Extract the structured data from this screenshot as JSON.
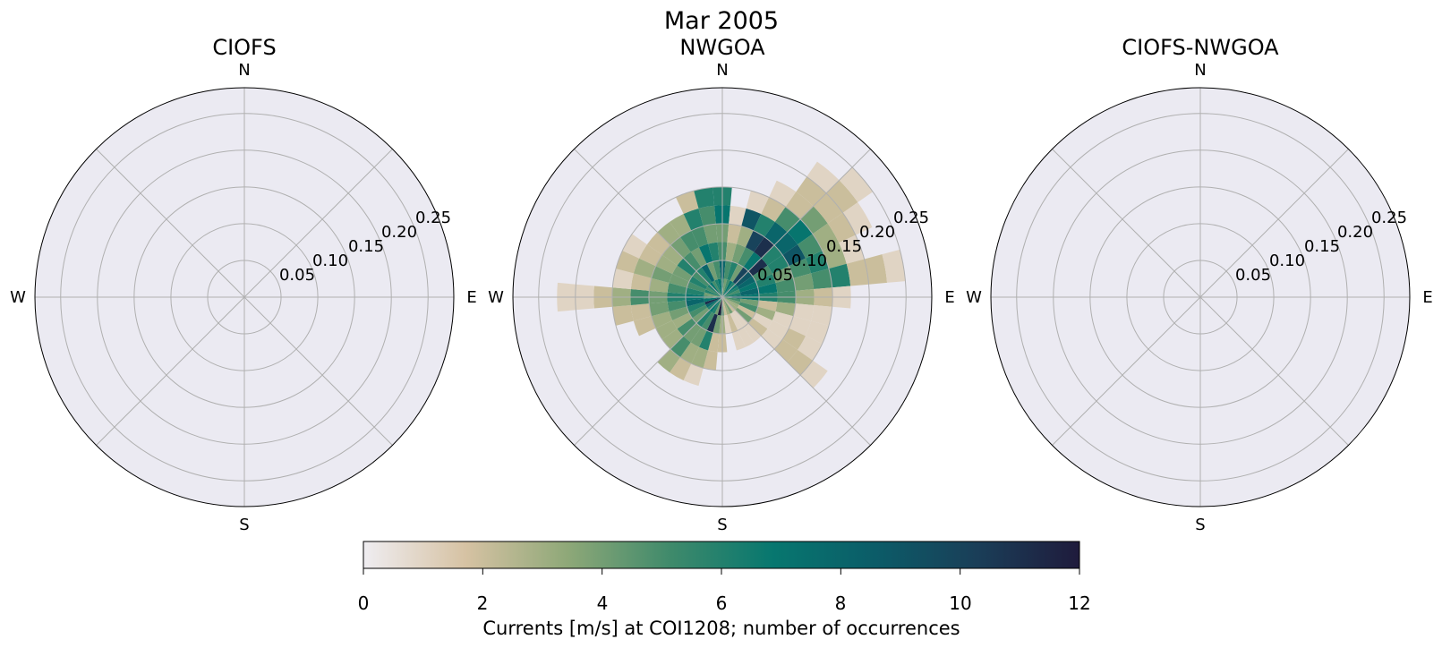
{
  "figure": {
    "title": "Mar 2005"
  },
  "colors": {
    "panel_background": "#ebeaf2",
    "grid": "#b0b0b0",
    "spine": "#000000",
    "colormap": [
      "#efedf1",
      "#d6c2a3",
      "#8ea878",
      "#3f8a6b",
      "#07776f",
      "#0b5c68",
      "#1a3e58",
      "#1f1b3c"
    ]
  },
  "chart_data": [
    {
      "type": "polar-histogram",
      "title": "CIOFS",
      "compass": {
        "n": "N",
        "e": "E",
        "s": "S",
        "w": "W"
      },
      "radial_ticks": [
        0.05,
        0.1,
        0.15,
        0.2,
        0.25
      ],
      "radial_tick_labels": [
        "0.05",
        "0.10",
        "0.15",
        "0.20",
        "0.25"
      ],
      "rmax": 0.285,
      "bins": []
    },
    {
      "type": "polar-histogram",
      "title": "NWGOA",
      "compass": {
        "n": "N",
        "e": "E",
        "s": "S",
        "w": "W"
      },
      "radial_ticks": [
        0.05,
        0.1,
        0.15,
        0.2,
        0.25
      ],
      "radial_tick_labels": [
        "0.05",
        "0.10",
        "0.15",
        "0.20",
        "0.25"
      ],
      "rmax": 0.285,
      "direction_bin_width_deg": 10,
      "speed_bin_width": 0.025,
      "bins": [
        {
          "dir": 0,
          "speed_bins": [
            1,
            2,
            3,
            4,
            5,
            6
          ],
          "counts": [
            6,
            8,
            5,
            4,
            7,
            6
          ]
        },
        {
          "dir": 10,
          "speed_bins": [
            1,
            2,
            3,
            4,
            5
          ],
          "counts": [
            4,
            5,
            3,
            2,
            1
          ]
        },
        {
          "dir": 20,
          "speed_bins": [
            1,
            2,
            3,
            4,
            5,
            6
          ],
          "counts": [
            5,
            6,
            4,
            3,
            9,
            1
          ]
        },
        {
          "dir": 30,
          "speed_bins": [
            1,
            2,
            3,
            4,
            5,
            6,
            7
          ],
          "counts": [
            7,
            4,
            5,
            10,
            6,
            2,
            1
          ]
        },
        {
          "dir": 40,
          "speed_bins": [
            1,
            2,
            3,
            4,
            5,
            6,
            7,
            8,
            9
          ],
          "counts": [
            6,
            10,
            7,
            11,
            8,
            5,
            2,
            2,
            1
          ]
        },
        {
          "dir": 50,
          "speed_bins": [
            1,
            2,
            3,
            4,
            5,
            6,
            7,
            8,
            9,
            10
          ],
          "counts": [
            7,
            9,
            11,
            6,
            8,
            7,
            4,
            2,
            2,
            1
          ]
        },
        {
          "dir": 60,
          "speed_bins": [
            1,
            2,
            3,
            4,
            5,
            6,
            7,
            8,
            9
          ],
          "counts": [
            6,
            8,
            5,
            6,
            9,
            5,
            3,
            2,
            1
          ]
        },
        {
          "dir": 70,
          "speed_bins": [
            1,
            2,
            3,
            4,
            5,
            6,
            7,
            8
          ],
          "counts": [
            5,
            7,
            6,
            4,
            5,
            6,
            3,
            1
          ]
        },
        {
          "dir": 80,
          "speed_bins": [
            1,
            2,
            3,
            4,
            5,
            6,
            7,
            8,
            9,
            10
          ],
          "counts": [
            6,
            8,
            7,
            5,
            4,
            5,
            6,
            2,
            2,
            1
          ]
        },
        {
          "dir": 90,
          "speed_bins": [
            1,
            2,
            3,
            4,
            5,
            6,
            7
          ],
          "counts": [
            8,
            7,
            6,
            5,
            3,
            2,
            1
          ]
        },
        {
          "dir": 100,
          "speed_bins": [
            1,
            2,
            3,
            4,
            5,
            6
          ],
          "counts": [
            5,
            4,
            2,
            3,
            1,
            1
          ]
        },
        {
          "dir": 110,
          "speed_bins": [
            1,
            2,
            3,
            4,
            5,
            6
          ],
          "counts": [
            4,
            5,
            3,
            1,
            1,
            1
          ]
        },
        {
          "dir": 120,
          "speed_bins": [
            1,
            2,
            3,
            4,
            5,
            6
          ],
          "counts": [
            3,
            2,
            1,
            1,
            2,
            1
          ]
        },
        {
          "dir": 130,
          "speed_bins": [
            1,
            2,
            3,
            4,
            5,
            6,
            7
          ],
          "counts": [
            3,
            4,
            2,
            1,
            2,
            2,
            1
          ]
        },
        {
          "dir": 140,
          "speed_bins": [
            1,
            2,
            3
          ],
          "counts": [
            2,
            1,
            1
          ]
        },
        {
          "dir": 150,
          "speed_bins": [
            1,
            2,
            3
          ],
          "counts": [
            4,
            1,
            1
          ]
        },
        {
          "dir": 160,
          "speed_bins": [
            1,
            2,
            3
          ],
          "counts": [
            3,
            2,
            1
          ]
        },
        {
          "dir": 170,
          "speed_bins": [
            1,
            2
          ],
          "counts": [
            2,
            1
          ]
        },
        {
          "dir": 180,
          "speed_bins": [
            1,
            2,
            3
          ],
          "counts": [
            5,
            3,
            2
          ]
        },
        {
          "dir": 190,
          "speed_bins": [
            1,
            2,
            3,
            4
          ],
          "counts": [
            12,
            4,
            2,
            2
          ]
        },
        {
          "dir": 200,
          "speed_bins": [
            1,
            2,
            3,
            4,
            5
          ],
          "counts": [
            4,
            11,
            6,
            3,
            1
          ]
        },
        {
          "dir": 210,
          "speed_bins": [
            1,
            2,
            3,
            4,
            5
          ],
          "counts": [
            6,
            5,
            4,
            3,
            2
          ]
        },
        {
          "dir": 220,
          "speed_bins": [
            1,
            2,
            3,
            4,
            5
          ],
          "counts": [
            7,
            6,
            4,
            5,
            3
          ]
        },
        {
          "dir": 230,
          "speed_bins": [
            1,
            2,
            3,
            4
          ],
          "counts": [
            6,
            4,
            5,
            3
          ]
        },
        {
          "dir": 240,
          "speed_bins": [
            1,
            2,
            3,
            4
          ],
          "counts": [
            8,
            5,
            3,
            3
          ]
        },
        {
          "dir": 250,
          "speed_bins": [
            1,
            2,
            3,
            4,
            5
          ],
          "counts": [
            11,
            6,
            4,
            3,
            2
          ]
        },
        {
          "dir": 260,
          "speed_bins": [
            1,
            2,
            3,
            4,
            5,
            6
          ],
          "counts": [
            7,
            8,
            5,
            4,
            2,
            2
          ]
        },
        {
          "dir": 270,
          "speed_bins": [
            1,
            2,
            3,
            4,
            5,
            6,
            7,
            8,
            9
          ],
          "counts": [
            5,
            7,
            6,
            4,
            5,
            3,
            2,
            1,
            1
          ]
        },
        {
          "dir": 280,
          "speed_bins": [
            1,
            2,
            3,
            4,
            5,
            6
          ],
          "counts": [
            4,
            6,
            5,
            3,
            2,
            1
          ]
        },
        {
          "dir": 290,
          "speed_bins": [
            1,
            2,
            3,
            4,
            5,
            6
          ],
          "counts": [
            6,
            5,
            4,
            4,
            3,
            2
          ]
        },
        {
          "dir": 300,
          "speed_bins": [
            1,
            2,
            3,
            4,
            5,
            6
          ],
          "counts": [
            5,
            6,
            4,
            3,
            2,
            1
          ]
        },
        {
          "dir": 310,
          "speed_bins": [
            1,
            2,
            3,
            4,
            5
          ],
          "counts": [
            6,
            5,
            6,
            3,
            2
          ]
        },
        {
          "dir": 320,
          "speed_bins": [
            1,
            2,
            3,
            4,
            5
          ],
          "counts": [
            7,
            6,
            5,
            4,
            3
          ]
        },
        {
          "dir": 330,
          "speed_bins": [
            1,
            2,
            3,
            4,
            5
          ],
          "counts": [
            5,
            8,
            4,
            5,
            3
          ]
        },
        {
          "dir": 340,
          "speed_bins": [
            1,
            2,
            3,
            4,
            5,
            6
          ],
          "counts": [
            6,
            4,
            7,
            5,
            6,
            2
          ]
        },
        {
          "dir": 350,
          "speed_bins": [
            1,
            2,
            3,
            4,
            5,
            6
          ],
          "counts": [
            7,
            5,
            6,
            4,
            5,
            6
          ]
        }
      ]
    },
    {
      "type": "polar-histogram",
      "title": "CIOFS-NWGOA",
      "compass": {
        "n": "N",
        "e": "E",
        "s": "S",
        "w": "W"
      },
      "radial_ticks": [
        0.05,
        0.1,
        0.15,
        0.2,
        0.25
      ],
      "radial_tick_labels": [
        "0.05",
        "0.10",
        "0.15",
        "0.20",
        "0.25"
      ],
      "rmax": 0.285,
      "bins": []
    }
  ],
  "colorbar": {
    "min": 0,
    "max": 12,
    "ticks": [
      0,
      2,
      4,
      6,
      8,
      10,
      12
    ],
    "tick_labels": [
      "0",
      "2",
      "4",
      "6",
      "8",
      "10",
      "12"
    ],
    "label": "Currents [m/s] at COI1208; number of occurrences"
  }
}
